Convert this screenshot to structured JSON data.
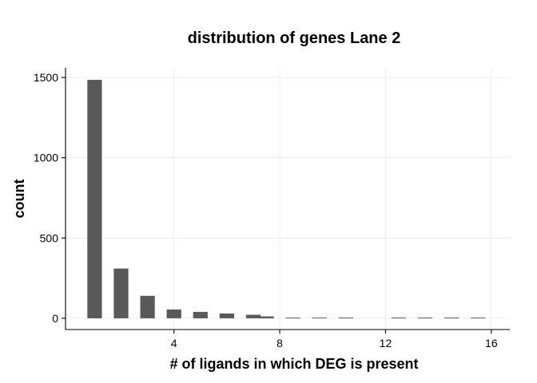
{
  "chart_data": {
    "type": "bar",
    "title": "distribution of genes Lane 2",
    "xlabel": "# of ligands in which DEG is present",
    "ylabel": "count",
    "x": [
      1,
      2,
      3,
      4,
      5,
      6,
      7,
      7.5,
      8.5,
      9.5,
      10.5,
      12.5,
      13.5,
      14.5,
      15.5
    ],
    "values": [
      1485,
      310,
      140,
      55,
      40,
      30,
      22,
      12,
      5,
      4,
      3,
      2,
      2,
      2,
      2
    ],
    "xlim": [
      -0.1,
      16.7
    ],
    "ylim": [
      -70,
      1560
    ],
    "x_ticks": [
      4,
      8,
      12,
      16
    ],
    "y_ticks": [
      0,
      500,
      1000,
      1500
    ],
    "bar_width": 0.55,
    "bar_color": "#595959",
    "grid": true
  }
}
